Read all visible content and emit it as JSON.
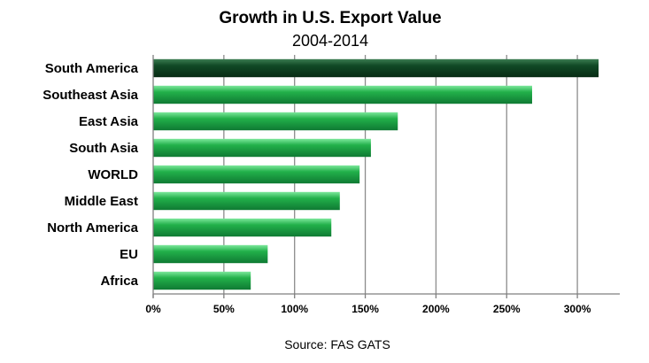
{
  "chart_data": {
    "type": "bar",
    "orientation": "horizontal",
    "title": "Growth in U.S. Export Value",
    "subtitle": "2004-2014",
    "categories": [
      "South America",
      "Southeast Asia",
      "East Asia",
      "South Asia",
      "WORLD",
      "Middle East",
      "North America",
      "EU",
      "Africa"
    ],
    "values": [
      315,
      268,
      173,
      154,
      146,
      132,
      126,
      81,
      69
    ],
    "highlight_index": 0,
    "xlabel": "",
    "ylabel": "",
    "xlim": [
      0,
      330
    ],
    "x_ticks": [
      0,
      50,
      100,
      150,
      200,
      250,
      300
    ],
    "x_tick_labels": [
      "0%",
      "50%",
      "100%",
      "150%",
      "200%",
      "250%",
      "300%"
    ],
    "grid": true,
    "legend": "none",
    "source": "Source: FAS GATS"
  },
  "colors": {
    "bar_main": "#22b04a",
    "bar_light": "#7de89c",
    "bar_dark": "#0f7a33",
    "highlight_main": "#114a26",
    "highlight_light": "#3c7d52",
    "highlight_dark": "#072b14",
    "grid": "#8c8c8c",
    "axis": "#7f7f7f"
  }
}
